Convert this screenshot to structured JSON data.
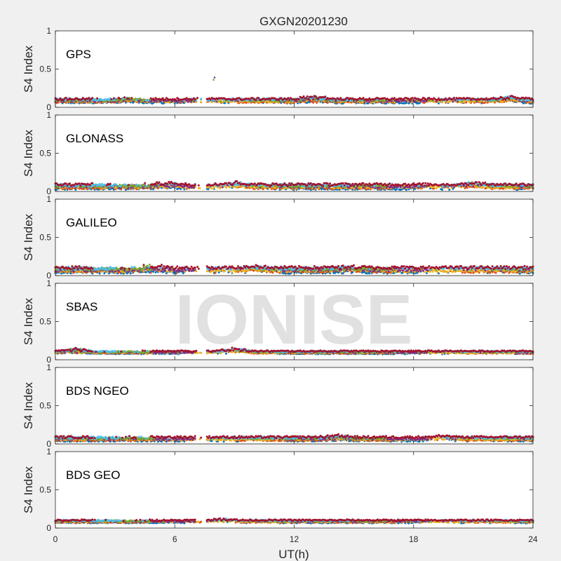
{
  "chart_data": {
    "type": "scatter",
    "title": "GXGN20201230",
    "xlabel": "UT(h)",
    "ylabel": "S4 Index",
    "xlim": [
      0,
      24
    ],
    "ylim": [
      0,
      1
    ],
    "xticks": [
      "0",
      "6",
      "12",
      "18",
      "24"
    ],
    "yticks": [
      "0",
      "0.5",
      "1"
    ],
    "watermark": "IONISE",
    "data_gap_hours": [
      7.35,
      7.6
    ],
    "colors": [
      "#0072BD",
      "#D95319",
      "#EDB120",
      "#7E2F8E",
      "#77AC30",
      "#4DBEEE",
      "#A2142F"
    ],
    "panels": [
      {
        "name": "GPS",
        "baseline": 0.09,
        "spread": 0.03,
        "outliers": [
          [
            8.0,
            0.39
          ],
          [
            7.95,
            0.36
          ]
        ],
        "bumps": [
          [
            13.0,
            0.19
          ],
          [
            3.6,
            0.14
          ],
          [
            22.9,
            0.17
          ]
        ]
      },
      {
        "name": "GLONASS",
        "baseline": 0.07,
        "spread": 0.035,
        "outliers": [],
        "bumps": [
          [
            5.5,
            0.15
          ],
          [
            9.0,
            0.15
          ],
          [
            21.0,
            0.14
          ]
        ]
      },
      {
        "name": "GALILEO",
        "baseline": 0.08,
        "spread": 0.04,
        "outliers": [],
        "bumps": [
          [
            4.8,
            0.17
          ],
          [
            10.0,
            0.15
          ],
          [
            14.8,
            0.14
          ]
        ]
      },
      {
        "name": "SBAS",
        "baseline": 0.1,
        "spread": 0.02,
        "outliers": [],
        "bumps": [
          [
            9.0,
            0.2
          ],
          [
            1.0,
            0.19
          ]
        ]
      },
      {
        "name": "BDS NGEO",
        "baseline": 0.07,
        "spread": 0.03,
        "outliers": [],
        "bumps": [
          [
            14.2,
            0.13
          ],
          [
            19.5,
            0.12
          ]
        ]
      },
      {
        "name": "BDS GEO",
        "baseline": 0.09,
        "spread": 0.02,
        "outliers": [],
        "bumps": [
          [
            8.5,
            0.14
          ]
        ]
      }
    ]
  }
}
